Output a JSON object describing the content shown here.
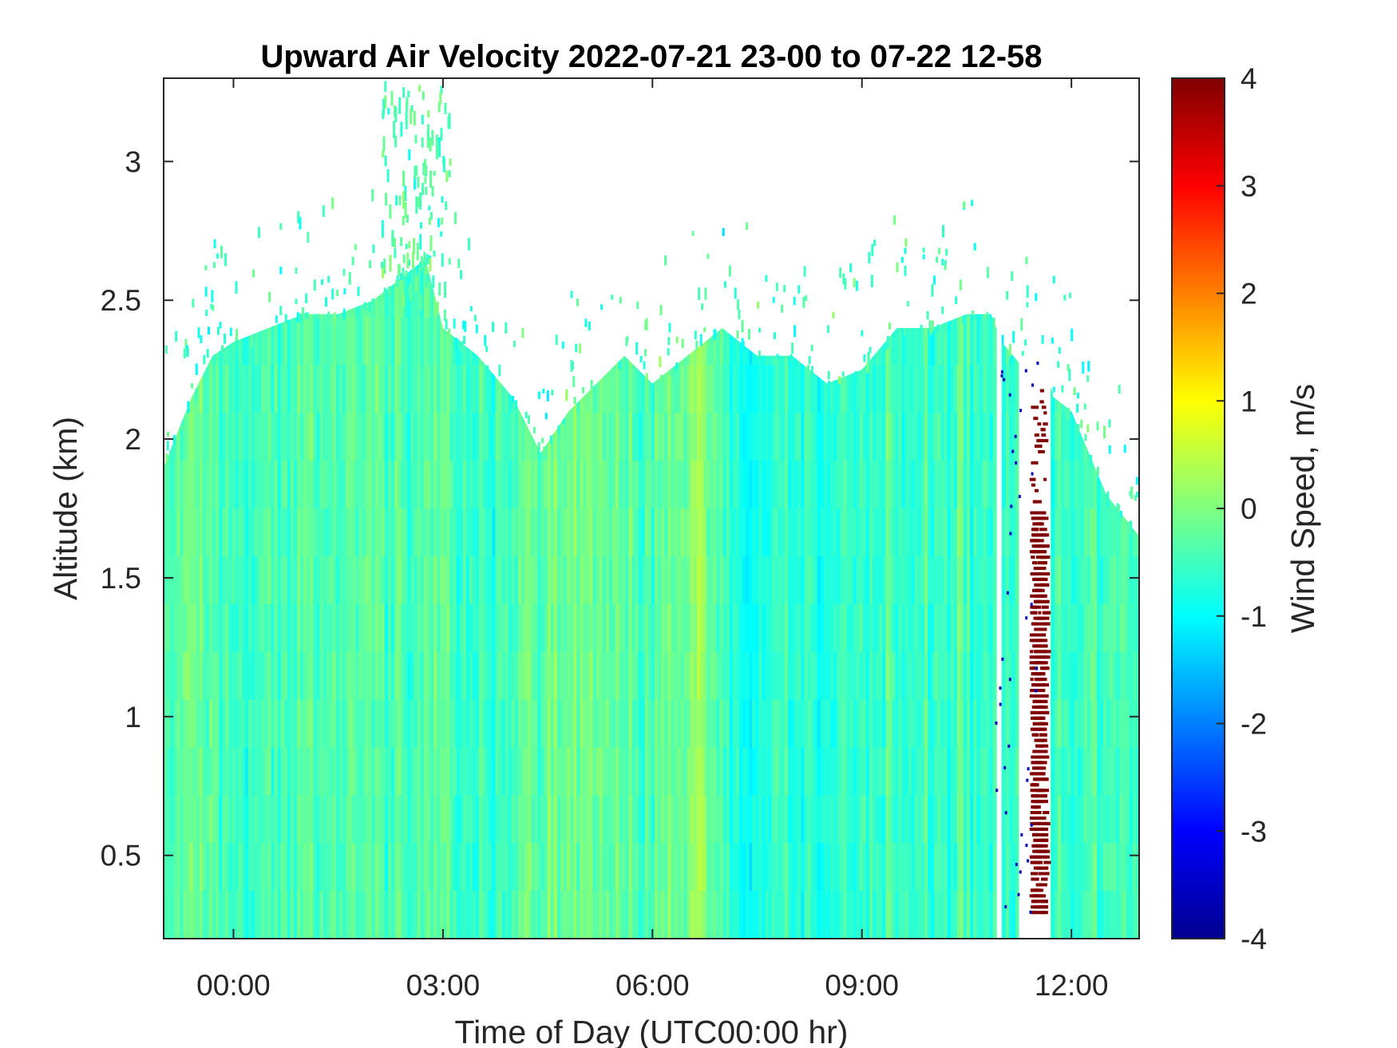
{
  "chart_data": {
    "type": "heatmap",
    "title": "Upward Air Velocity 2022-07-21 23-00 to 07-22 12-58",
    "xlabel": "Time of Day (UTC00:00 hr)",
    "ylabel": "Altitude (km)",
    "colorbar_label": "Wind Speed, m/s",
    "colormap": "jet",
    "xlim_hours": [
      -1.0,
      12.97
    ],
    "ylim": [
      0.2,
      3.3
    ],
    "clim": [
      -4,
      4
    ],
    "x_ticks": [
      {
        "value": 0,
        "label": "00:00"
      },
      {
        "value": 3,
        "label": "03:00"
      },
      {
        "value": 6,
        "label": "06:00"
      },
      {
        "value": 9,
        "label": "09:00"
      },
      {
        "value": 12,
        "label": "12:00"
      }
    ],
    "y_ticks": [
      {
        "value": 0.5,
        "label": "0.5"
      },
      {
        "value": 1,
        "label": "1"
      },
      {
        "value": 1.5,
        "label": "1.5"
      },
      {
        "value": 2,
        "label": "2"
      },
      {
        "value": 2.5,
        "label": "2.5"
      },
      {
        "value": 3,
        "label": "3"
      }
    ],
    "colorbar_ticks": [
      {
        "value": -4,
        "label": "-4"
      },
      {
        "value": -3,
        "label": "-3"
      },
      {
        "value": -2,
        "label": "-2"
      },
      {
        "value": -1,
        "label": "-1"
      },
      {
        "value": 0,
        "label": "0"
      },
      {
        "value": 1,
        "label": "1"
      },
      {
        "value": 2,
        "label": "2"
      },
      {
        "value": 3,
        "label": "3"
      },
      {
        "value": 4,
        "label": "4"
      }
    ],
    "data_top_km": {
      "hours": [
        -1.0,
        -0.6,
        -0.3,
        0.0,
        0.5,
        1.0,
        1.5,
        2.0,
        2.5,
        2.75,
        3.0,
        3.5,
        4.0,
        4.4,
        4.8,
        5.2,
        5.6,
        6.0,
        6.5,
        7.0,
        7.5,
        8.0,
        8.5,
        9.0,
        9.5,
        10.0,
        10.5,
        10.85,
        11.0,
        11.5,
        12.0,
        12.5,
        12.97
      ],
      "km": [
        1.9,
        2.15,
        2.3,
        2.35,
        2.4,
        2.45,
        2.45,
        2.5,
        2.6,
        2.65,
        2.4,
        2.3,
        2.15,
        1.95,
        2.1,
        2.2,
        2.3,
        2.2,
        2.3,
        2.4,
        2.3,
        2.3,
        2.2,
        2.25,
        2.4,
        2.4,
        2.45,
        2.45,
        2.35,
        2.2,
        2.1,
        1.8,
        1.65
      ]
    },
    "mean_velocity_by_time": {
      "hours": [
        -1.0,
        -0.5,
        0.0,
        1.0,
        2.0,
        3.0,
        4.0,
        4.5,
        5.0,
        6.0,
        6.7,
        7.2,
        8.0,
        9.0,
        10.0,
        10.9,
        11.6,
        12.5,
        12.97
      ],
      "ms": [
        -0.4,
        -0.2,
        -0.5,
        -0.4,
        -0.4,
        -0.3,
        -0.6,
        -0.1,
        -0.2,
        -0.3,
        0.1,
        -0.8,
        -0.6,
        -0.5,
        -0.5,
        -0.5,
        -0.6,
        -0.5,
        -0.4
      ]
    },
    "gap": {
      "x_range_hours": [
        10.93,
        11.0
      ]
    },
    "precip_band": {
      "x_range_hours": [
        11.4,
        11.65
      ],
      "y_range_km": [
        0.3,
        2.2
      ],
      "value_ms": 4
    }
  }
}
